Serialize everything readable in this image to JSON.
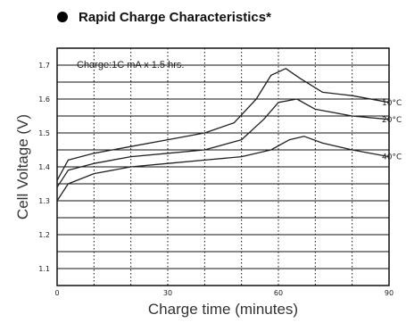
{
  "chart_data": {
    "type": "line",
    "title": "Rapid Charge Characteristics*",
    "annotation": "Charge:1C mA x 1.5 hrs.",
    "xlabel": "Charge time (minutes)",
    "ylabel": "Cell Voltage (V)",
    "xlim": [
      0,
      90
    ],
    "ylim": [
      1.05,
      1.75
    ],
    "x_ticks": [
      0,
      30,
      60,
      90
    ],
    "y_ticks": [
      1.7,
      1.6,
      1.5,
      1.4,
      1.3,
      1.2,
      1.1
    ],
    "grid": true,
    "series": [
      {
        "name": "10°C",
        "x": [
          0,
          3,
          10,
          20,
          30,
          40,
          48,
          54,
          58,
          62,
          66,
          72,
          80,
          90
        ],
        "y": [
          1.36,
          1.42,
          1.44,
          1.46,
          1.48,
          1.5,
          1.53,
          1.6,
          1.67,
          1.69,
          1.66,
          1.62,
          1.61,
          1.59
        ]
      },
      {
        "name": "20°C",
        "x": [
          0,
          3,
          10,
          20,
          30,
          40,
          50,
          56,
          60,
          65,
          70,
          80,
          90
        ],
        "y": [
          1.34,
          1.39,
          1.41,
          1.43,
          1.44,
          1.45,
          1.48,
          1.54,
          1.59,
          1.6,
          1.57,
          1.55,
          1.54
        ]
      },
      {
        "name": "40°C",
        "x": [
          0,
          3,
          10,
          20,
          30,
          40,
          50,
          58,
          63,
          67,
          72,
          80,
          90
        ],
        "y": [
          1.3,
          1.35,
          1.38,
          1.4,
          1.41,
          1.42,
          1.43,
          1.45,
          1.48,
          1.49,
          1.47,
          1.45,
          1.43
        ]
      }
    ]
  }
}
